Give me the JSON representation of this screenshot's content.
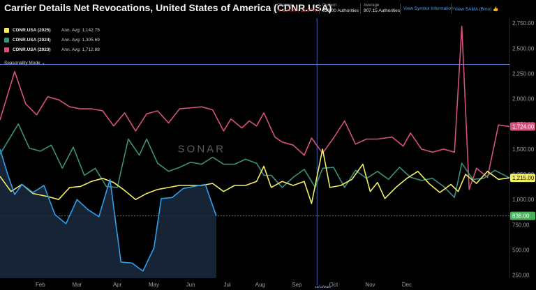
{
  "header": {
    "title": "Carrier Details Net Revocations, United States of America (CDNR.USA)",
    "change": {
      "label": "Change",
      "value": "294.00",
      "pct": "(-25.97%)"
    },
    "current": {
      "label": "Current",
      "value": "838.00 Authorities"
    },
    "average": {
      "label": "Average",
      "value": "907.15 Authorities"
    },
    "links": [
      "View Symbol Information",
      "View SAMA (Bmo) 👍"
    ]
  },
  "legend": {
    "seasonality_label": "Seasonality Mode",
    "items": [
      {
        "name": "CDNR.USA (2025)",
        "avg": "Ann. Avg: 1,142.75",
        "color": "#f2ef66"
      },
      {
        "name": "CDNR.USA (2024)",
        "avg": "Ann. Avg: 1,305.69",
        "color": "#3d8f7d"
      },
      {
        "name": "CDNR.USA (2023)",
        "avg": "Ann. Avg: 1,712.88",
        "color": "#d6517d"
      }
    ]
  },
  "watermark": "SONAR",
  "crosshair": {
    "date_label": "10/13/2024"
  },
  "chart_data": {
    "type": "line",
    "y_axis": {
      "ylim": [
        220,
        2800
      ],
      "ticks": [
        "2,750.00",
        "2,500.00",
        "2,250.00",
        "2,000.00",
        "1,750.00",
        "1,500.00",
        "1,250.00",
        "1,000.00",
        "750.00",
        "500.00",
        "250.00"
      ]
    },
    "x_axis": {
      "ticks": [
        "Feb",
        "Mar",
        "Apr",
        "May",
        "Jun",
        "Jul",
        "Aug",
        "Sep",
        "Oct",
        "Nov",
        "Dec"
      ]
    },
    "reference_line": 2340,
    "last_values": [
      {
        "label": "1,724.00",
        "color": "#d6517d",
        "text_color": "#ffffff"
      },
      {
        "label": "1,215.00",
        "color": "#f2ef66",
        "text_color": "#111111"
      },
      {
        "label": "838.00",
        "color": "#49b35a",
        "text_color": "#ffffff"
      }
    ],
    "series": [
      {
        "color": "#d6517d",
        "values": [
          [
            0.0,
            1790
          ],
          [
            0.04,
            2270
          ],
          [
            0.07,
            1950
          ],
          [
            0.1,
            1840
          ],
          [
            0.13,
            2020
          ],
          [
            0.16,
            1990
          ],
          [
            0.19,
            1920
          ],
          [
            0.22,
            1900
          ],
          [
            0.25,
            1900
          ],
          [
            0.28,
            1880
          ],
          [
            0.31,
            1730
          ],
          [
            0.34,
            1860
          ],
          [
            0.37,
            1680
          ],
          [
            0.4,
            1850
          ],
          [
            0.43,
            1880
          ],
          [
            0.46,
            1760
          ],
          [
            0.49,
            1900
          ],
          [
            0.52,
            1910
          ],
          [
            0.55,
            1920
          ],
          [
            0.58,
            1890
          ],
          [
            0.61,
            1680
          ],
          [
            0.63,
            1800
          ],
          [
            0.66,
            1710
          ],
          [
            0.68,
            1780
          ],
          [
            0.7,
            1730
          ],
          [
            0.72,
            1860
          ],
          [
            0.75,
            1620
          ],
          [
            0.77,
            1570
          ],
          [
            0.8,
            1540
          ],
          [
            0.83,
            1440
          ],
          [
            0.85,
            1610
          ],
          [
            0.88,
            1460
          ],
          [
            0.91,
            1610
          ],
          [
            0.94,
            1780
          ],
          [
            0.97,
            1550
          ],
          [
            1.0,
            1600
          ],
          [
            1.03,
            1600
          ],
          [
            1.07,
            1620
          ],
          [
            1.1,
            1530
          ],
          [
            1.12,
            1660
          ],
          [
            1.15,
            1500
          ],
          [
            1.18,
            1470
          ],
          [
            1.21,
            1500
          ],
          [
            1.24,
            1470
          ],
          [
            1.26,
            2720
          ],
          [
            1.28,
            1100
          ],
          [
            1.3,
            1310
          ],
          [
            1.33,
            1220
          ],
          [
            1.36,
            1740
          ],
          [
            1.39,
            1724
          ]
        ]
      },
      {
        "color": "#3d8f7d",
        "values": [
          [
            0.0,
            1450
          ],
          [
            0.05,
            1750
          ],
          [
            0.08,
            1510
          ],
          [
            0.11,
            1480
          ],
          [
            0.14,
            1540
          ],
          [
            0.17,
            1310
          ],
          [
            0.2,
            1520
          ],
          [
            0.23,
            1240
          ],
          [
            0.26,
            1310
          ],
          [
            0.29,
            1130
          ],
          [
            0.32,
            1120
          ],
          [
            0.35,
            1600
          ],
          [
            0.38,
            1440
          ],
          [
            0.4,
            1600
          ],
          [
            0.43,
            1360
          ],
          [
            0.46,
            1280
          ],
          [
            0.49,
            1320
          ],
          [
            0.52,
            1370
          ],
          [
            0.55,
            1350
          ],
          [
            0.58,
            1420
          ],
          [
            0.61,
            1350
          ],
          [
            0.64,
            1350
          ],
          [
            0.67,
            1400
          ],
          [
            0.7,
            1360
          ],
          [
            0.72,
            1240
          ],
          [
            0.74,
            1240
          ],
          [
            0.77,
            1120
          ],
          [
            0.8,
            1220
          ],
          [
            0.83,
            1300
          ],
          [
            0.86,
            1120
          ],
          [
            0.88,
            1310
          ],
          [
            0.91,
            1320
          ],
          [
            0.94,
            1120
          ],
          [
            0.97,
            1290
          ],
          [
            1.0,
            1210
          ],
          [
            1.03,
            1280
          ],
          [
            1.06,
            1200
          ],
          [
            1.09,
            1320
          ],
          [
            1.12,
            1220
          ],
          [
            1.15,
            1190
          ],
          [
            1.18,
            1210
          ],
          [
            1.21,
            1130
          ],
          [
            1.24,
            1020
          ],
          [
            1.26,
            1360
          ],
          [
            1.29,
            1200
          ],
          [
            1.32,
            1210
          ],
          [
            1.35,
            1290
          ],
          [
            1.39,
            1215
          ]
        ]
      },
      {
        "color": "#f2ef66",
        "values": [
          [
            0.0,
            1230
          ],
          [
            0.03,
            1080
          ],
          [
            0.06,
            1150
          ],
          [
            0.09,
            1060
          ],
          [
            0.13,
            1030
          ],
          [
            0.16,
            1000
          ],
          [
            0.19,
            1120
          ],
          [
            0.22,
            1130
          ],
          [
            0.25,
            1180
          ],
          [
            0.28,
            1210
          ],
          [
            0.31,
            1170
          ],
          [
            0.34,
            1090
          ],
          [
            0.37,
            1000
          ],
          [
            0.4,
            1060
          ],
          [
            0.43,
            1100
          ],
          [
            0.46,
            1120
          ],
          [
            0.49,
            1140
          ],
          [
            0.52,
            1140
          ],
          [
            0.55,
            1140
          ],
          [
            0.58,
            1160
          ],
          [
            0.61,
            1080
          ],
          [
            0.64,
            1140
          ],
          [
            0.67,
            1140
          ],
          [
            0.7,
            1180
          ],
          [
            0.72,
            1330
          ],
          [
            0.74,
            1120
          ],
          [
            0.77,
            1180
          ],
          [
            0.8,
            1140
          ],
          [
            0.83,
            1180
          ],
          [
            0.85,
            960
          ],
          [
            0.88,
            1500
          ],
          [
            0.9,
            1120
          ],
          [
            0.93,
            1140
          ],
          [
            0.96,
            1200
          ],
          [
            0.99,
            1350
          ],
          [
            1.01,
            1080
          ],
          [
            1.03,
            1170
          ],
          [
            1.05,
            1010
          ],
          [
            1.08,
            1120
          ],
          [
            1.11,
            1210
          ],
          [
            1.14,
            1280
          ],
          [
            1.17,
            1160
          ],
          [
            1.2,
            1070
          ],
          [
            1.23,
            1150
          ],
          [
            1.25,
            1080
          ],
          [
            1.27,
            1250
          ],
          [
            1.3,
            1160
          ],
          [
            1.33,
            1280
          ],
          [
            1.36,
            1200
          ],
          [
            1.39,
            1215
          ]
        ]
      },
      {
        "color": "#2fa0ea",
        "values": [
          [
            0.0,
            1500
          ],
          [
            0.02,
            1260
          ],
          [
            0.04,
            1050
          ],
          [
            0.06,
            1150
          ],
          [
            0.09,
            1070
          ],
          [
            0.12,
            1140
          ],
          [
            0.15,
            850
          ],
          [
            0.18,
            760
          ],
          [
            0.21,
            1000
          ],
          [
            0.24,
            900
          ],
          [
            0.27,
            830
          ],
          [
            0.3,
            1200
          ],
          [
            0.33,
            380
          ],
          [
            0.36,
            370
          ],
          [
            0.39,
            290
          ],
          [
            0.42,
            520
          ],
          [
            0.44,
            1010
          ],
          [
            0.47,
            1020
          ],
          [
            0.5,
            1110
          ],
          [
            0.53,
            1130
          ],
          [
            0.56,
            1150
          ],
          [
            0.59,
            838
          ]
        ]
      }
    ]
  }
}
